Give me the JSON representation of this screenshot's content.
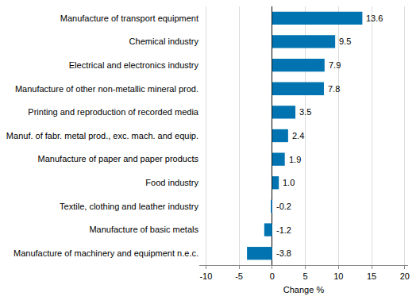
{
  "chart_data": {
    "type": "bar",
    "orientation": "horizontal",
    "categories": [
      "Manufacture of transport equipment",
      "Chemical industry",
      "Electrical and electronics industry",
      "Manufacture of other non-metallic mineral prod.",
      "Printing and reproduction of recorded media",
      "Manuf. of fabr. metal prod., exc. mach. and equip.",
      "Manufacture of paper and paper products",
      "Food industry",
      "Textile, clothing and leather industry",
      "Manufacture of basic metals",
      "Manufacture of machinery and equipment n.e.c."
    ],
    "values": [
      13.6,
      9.5,
      7.9,
      7.8,
      3.5,
      2.4,
      1.9,
      1.0,
      -0.2,
      -1.2,
      -3.8
    ],
    "value_labels": [
      "13.6",
      "9.5",
      "7.9",
      "7.8",
      "3.5",
      "2.4",
      "1.9",
      "1.0",
      "-0.2",
      "-1.2",
      "-3.8"
    ],
    "color": "#0073b0",
    "x_label": "Change %",
    "xlim": [
      -11,
      20.5
    ],
    "xticks": [
      -10,
      -5,
      0,
      5,
      10,
      15,
      20
    ],
    "grid": true,
    "data_labels": true
  }
}
